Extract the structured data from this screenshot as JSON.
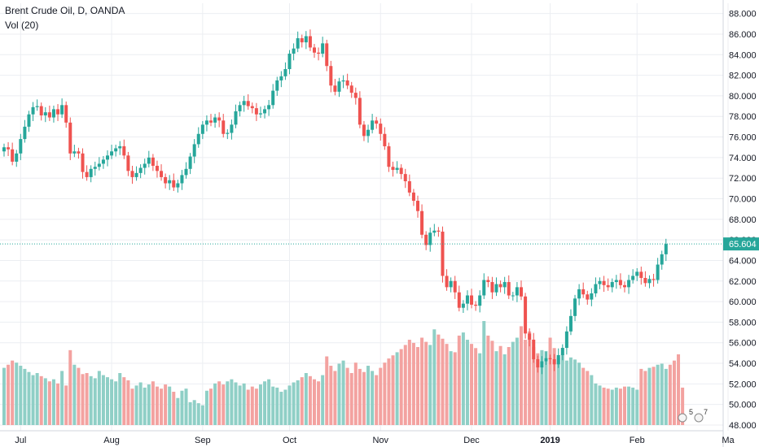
{
  "legend": {
    "title": "Brent Crude Oil, D, OANDA",
    "indicator": "Vol (20)"
  },
  "price_label": "65.604",
  "events": {
    "earnings_count": "5",
    "dividends_count": "7"
  },
  "colors": {
    "up": "#26a69a",
    "down": "#ef5350",
    "vol_up": "#8fcfc6",
    "vol_down": "#f3a2a0",
    "price_line": "#26a69a",
    "grid": "#eceef2",
    "axis_text": "#131722"
  },
  "chart_data": {
    "type": "candlestick",
    "title": "Brent Crude Oil, D, OANDA",
    "ylim": [
      48,
      89
    ],
    "y_ticks": [
      "88.000",
      "86.000",
      "84.000",
      "82.000",
      "80.000",
      "78.000",
      "76.000",
      "74.000",
      "72.000",
      "70.000",
      "68.000",
      "66.000",
      "64.000",
      "62.000",
      "60.000",
      "58.000",
      "56.000",
      "54.000",
      "52.000",
      "50.000",
      "48.000"
    ],
    "x_ticks": [
      "Jul",
      "Aug",
      "Sep",
      "Oct",
      "Nov",
      "Dec",
      "2019",
      "Feb",
      "Ma"
    ],
    "x_tick_bar_index": [
      4,
      26,
      48,
      69,
      91,
      113,
      132,
      153,
      175
    ],
    "last_price": 65.604,
    "close": [
      75.0,
      74.8,
      73.6,
      74.4,
      75.8,
      77.0,
      78.2,
      78.9,
      79.0,
      78.1,
      78.4,
      77.9,
      78.7,
      78.2,
      79.1,
      77.4,
      74.4,
      74.6,
      74.4,
      72.6,
      72.1,
      72.9,
      73.1,
      73.4,
      73.8,
      74.2,
      74.6,
      74.9,
      75.1,
      74.2,
      72.7,
      72.1,
      72.5,
      73.0,
      73.4,
      74.0,
      73.2,
      72.7,
      72.1,
      71.5,
      71.8,
      71.1,
      71.5,
      72.3,
      72.9,
      74.1,
      75.3,
      76.3,
      77.2,
      77.6,
      77.4,
      77.9,
      77.6,
      76.3,
      76.4,
      77.2,
      78.5,
      79.1,
      79.5,
      79.0,
      78.8,
      78.2,
      78.3,
      78.7,
      79.1,
      80.5,
      81.5,
      81.9,
      82.6,
      84.1,
      84.6,
      85.6,
      85.2,
      85.8,
      84.7,
      84.2,
      84.1,
      85.1,
      82.9,
      81.0,
      80.4,
      81.4,
      81.5,
      81.0,
      80.3,
      79.8,
      77.2,
      76.1,
      76.7,
      77.6,
      77.3,
      76.3,
      75.1,
      73.1,
      72.8,
      73.0,
      72.4,
      71.7,
      70.6,
      69.8,
      68.8,
      66.5,
      65.5,
      66.7,
      66.9,
      66.8,
      62.5,
      61.4,
      62.0,
      60.9,
      59.4,
      59.8,
      60.6,
      59.7,
      59.6,
      60.6,
      62.1,
      61.9,
      60.9,
      61.7,
      61.4,
      61.9,
      60.6,
      60.6,
      61.4,
      60.5,
      56.9,
      56.3,
      54.4,
      53.6,
      54.2,
      54.5,
      54.4,
      53.9,
      54.8,
      55.5,
      57.1,
      58.6,
      60.3,
      61.2,
      60.7,
      60.2,
      60.8,
      61.7,
      62.0,
      61.6,
      61.4,
      61.9,
      62.1,
      61.6,
      61.4,
      62.1,
      62.5,
      62.9,
      62.3,
      61.8,
      62.2,
      62.1,
      63.6,
      64.6,
      65.604
    ],
    "volume_rel": [
      0.55,
      0.58,
      0.62,
      0.6,
      0.57,
      0.54,
      0.51,
      0.48,
      0.5,
      0.47,
      0.45,
      0.42,
      0.44,
      0.4,
      0.52,
      0.38,
      0.72,
      0.58,
      0.55,
      0.49,
      0.5,
      0.47,
      0.45,
      0.52,
      0.48,
      0.46,
      0.44,
      0.42,
      0.5,
      0.46,
      0.43,
      0.35,
      0.38,
      0.41,
      0.36,
      0.39,
      0.42,
      0.37,
      0.35,
      0.39,
      0.37,
      0.32,
      0.26,
      0.33,
      0.35,
      0.22,
      0.24,
      0.21,
      0.19,
      0.33,
      0.35,
      0.4,
      0.42,
      0.39,
      0.42,
      0.44,
      0.41,
      0.38,
      0.4,
      0.34,
      0.37,
      0.35,
      0.39,
      0.42,
      0.44,
      0.37,
      0.36,
      0.32,
      0.34,
      0.38,
      0.41,
      0.43,
      0.46,
      0.5,
      0.47,
      0.44,
      0.42,
      0.48,
      0.66,
      0.57,
      0.52,
      0.59,
      0.62,
      0.55,
      0.5,
      0.6,
      0.54,
      0.51,
      0.57,
      0.52,
      0.48,
      0.55,
      0.6,
      0.64,
      0.67,
      0.7,
      0.73,
      0.77,
      0.82,
      0.79,
      0.75,
      0.84,
      0.8,
      0.77,
      0.92,
      0.87,
      0.83,
      0.78,
      0.71,
      0.7,
      0.86,
      0.89,
      0.82,
      0.78,
      0.74,
      0.69,
      1.0,
      0.86,
      0.81,
      0.71,
      0.76,
      0.68,
      0.75,
      0.8,
      0.84,
      0.95,
      0.82,
      0.9,
      0.75,
      0.69,
      0.72,
      0.71,
      0.84,
      0.74,
      0.65,
      0.68,
      0.62,
      0.65,
      0.63,
      0.6,
      0.55,
      0.52,
      0.48,
      0.4,
      0.38,
      0.36,
      0.35,
      0.34,
      0.36,
      0.35,
      0.37,
      0.37,
      0.36,
      0.34,
      0.54,
      0.52,
      0.55,
      0.56,
      0.58,
      0.59,
      0.54,
      0.58,
      0.62,
      0.68,
      0.36
    ]
  }
}
